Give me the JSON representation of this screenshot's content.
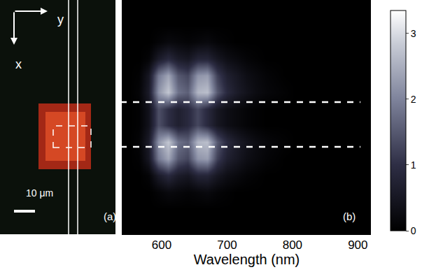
{
  "chart_data": {
    "type": "heatmap",
    "xlabel": "Wavelength (nm)",
    "x": [
      550,
      565,
      580,
      595,
      610,
      625,
      640,
      655,
      670,
      685,
      700,
      715,
      730,
      745,
      760,
      775,
      790,
      805,
      820,
      835,
      850,
      865,
      880,
      895,
      910
    ],
    "y": [
      0,
      1,
      2,
      3,
      4,
      5,
      6,
      7,
      8,
      9,
      10,
      11,
      12,
      13
    ],
    "cells": [
      [
        0,
        0,
        0,
        0,
        0,
        0,
        0,
        0,
        0,
        0,
        0,
        0,
        0,
        0,
        0,
        0,
        0,
        0,
        0,
        0,
        0,
        0,
        0,
        0,
        0
      ],
      [
        0,
        0,
        0,
        0,
        0,
        0,
        0,
        0,
        0,
        0,
        0,
        0,
        0,
        0,
        0,
        0,
        0,
        0,
        0,
        0,
        0,
        0,
        0,
        0,
        0
      ],
      [
        0,
        0,
        0,
        0.1,
        0.2,
        0.15,
        0.1,
        0.15,
        0.2,
        0.1,
        0.05,
        0,
        0,
        0,
        0,
        0,
        0,
        0,
        0,
        0,
        0,
        0,
        0,
        0,
        0
      ],
      [
        0,
        0,
        0.1,
        0.6,
        0.9,
        0.6,
        0.5,
        0.8,
        0.8,
        0.5,
        0.3,
        0.2,
        0.1,
        0.05,
        0,
        0,
        0,
        0,
        0,
        0,
        0,
        0,
        0,
        0,
        0
      ],
      [
        0,
        0.05,
        0.5,
        1.9,
        2.4,
        1.5,
        1.3,
        2.2,
        2.3,
        1.2,
        0.7,
        0.5,
        0.3,
        0.2,
        0.1,
        0.05,
        0,
        0,
        0,
        0,
        0,
        0,
        0,
        0,
        0
      ],
      [
        0,
        0.1,
        0.6,
        2.2,
        2.8,
        1.8,
        1.6,
        2.6,
        2.7,
        1.5,
        0.9,
        0.6,
        0.4,
        0.25,
        0.15,
        0.1,
        0.05,
        0,
        0,
        0,
        0,
        0,
        0,
        0,
        0
      ],
      [
        0,
        0.05,
        0.4,
        1.4,
        1.0,
        0.7,
        0.9,
        1.3,
        0.9,
        0.5,
        0.3,
        0.2,
        0.1,
        0.05,
        0,
        0,
        0,
        0,
        0,
        0,
        0,
        0,
        0,
        0,
        0
      ],
      [
        0,
        0.05,
        0.4,
        1.4,
        1.0,
        0.7,
        0.9,
        1.3,
        0.9,
        0.5,
        0.3,
        0.2,
        0.1,
        0.05,
        0,
        0,
        0,
        0,
        0,
        0,
        0,
        0,
        0,
        0,
        0
      ],
      [
        0,
        0.1,
        0.6,
        2.2,
        2.8,
        1.8,
        1.6,
        2.6,
        2.7,
        1.5,
        0.9,
        0.6,
        0.4,
        0.25,
        0.15,
        0.1,
        0.05,
        0,
        0,
        0,
        0,
        0,
        0,
        0,
        0
      ],
      [
        0,
        0.05,
        0.5,
        1.9,
        2.4,
        1.5,
        1.3,
        2.2,
        2.3,
        1.2,
        0.7,
        0.5,
        0.3,
        0.2,
        0.1,
        0.05,
        0,
        0,
        0,
        0,
        0,
        0,
        0,
        0,
        0
      ],
      [
        0,
        0,
        0.1,
        0.6,
        0.9,
        0.6,
        0.5,
        0.8,
        0.8,
        0.5,
        0.3,
        0.2,
        0.1,
        0.05,
        0,
        0,
        0,
        0,
        0,
        0,
        0,
        0,
        0,
        0,
        0
      ],
      [
        0,
        0,
        0,
        0.1,
        0.2,
        0.15,
        0.1,
        0.15,
        0.2,
        0.1,
        0.05,
        0,
        0,
        0,
        0,
        0,
        0,
        0,
        0,
        0,
        0,
        0,
        0,
        0,
        0
      ],
      [
        0,
        0,
        0,
        0,
        0,
        0,
        0,
        0,
        0,
        0,
        0,
        0,
        0,
        0,
        0,
        0,
        0,
        0,
        0,
        0,
        0,
        0,
        0,
        0,
        0
      ],
      [
        0,
        0,
        0,
        0,
        0,
        0,
        0,
        0,
        0,
        0,
        0,
        0,
        0,
        0,
        0,
        0,
        0,
        0,
        0,
        0,
        0,
        0,
        0,
        0,
        0
      ]
    ],
    "xlim": [
      540,
      920
    ],
    "xticks": [
      600,
      700,
      800,
      900
    ],
    "ylim": [
      -0.5,
      13.5
    ],
    "clim": [
      0,
      3.35
    ],
    "cticks": [
      0,
      1,
      2,
      3
    ],
    "tick_labels": "x",
    "axis_arrows": [
      "x",
      "y"
    ],
    "scale_bar": "10 μm",
    "panel_labels": [
      "(a)",
      "(b)"
    ]
  }
}
